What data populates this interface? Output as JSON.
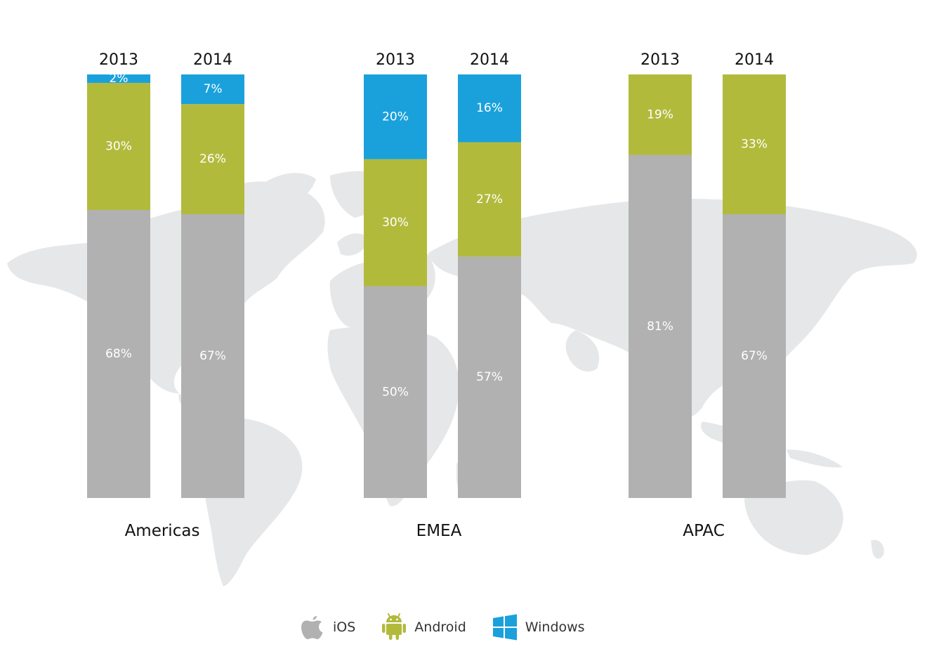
{
  "chart_data": {
    "type": "bar",
    "stacked": true,
    "ylim": [
      0,
      100
    ],
    "groups": [
      "Americas",
      "EMEA",
      "APAC"
    ],
    "years": [
      "2013",
      "2014"
    ],
    "series": [
      {
        "name": "iOS",
        "color": "#b1b1b1"
      },
      {
        "name": "Android",
        "color": "#b2ba3c"
      },
      {
        "name": "Windows",
        "color": "#1aa1dc"
      }
    ],
    "data": [
      {
        "group": "Americas",
        "year": "2013",
        "iOS": 68,
        "Android": 30,
        "Windows": 2
      },
      {
        "group": "Americas",
        "year": "2014",
        "iOS": 67,
        "Android": 26,
        "Windows": 7
      },
      {
        "group": "EMEA",
        "year": "2013",
        "iOS": 50,
        "Android": 30,
        "Windows": 20
      },
      {
        "group": "EMEA",
        "year": "2014",
        "iOS": 57,
        "Android": 27,
        "Windows": 16
      },
      {
        "group": "APAC",
        "year": "2013",
        "iOS": 81,
        "Android": 19,
        "Windows": 0
      },
      {
        "group": "APAC",
        "year": "2014",
        "iOS": 67,
        "Android": 33,
        "Windows": 0
      }
    ],
    "value_suffix": "%"
  },
  "legend": [
    {
      "label": "iOS",
      "icon": "apple-icon",
      "color": "#b1b1b1"
    },
    {
      "label": "Android",
      "icon": "android-icon",
      "color": "#b2ba3c"
    },
    {
      "label": "Windows",
      "icon": "windows-icon",
      "color": "#1aa1dc"
    }
  ],
  "background": {
    "map_color": "#e6e7e8"
  }
}
